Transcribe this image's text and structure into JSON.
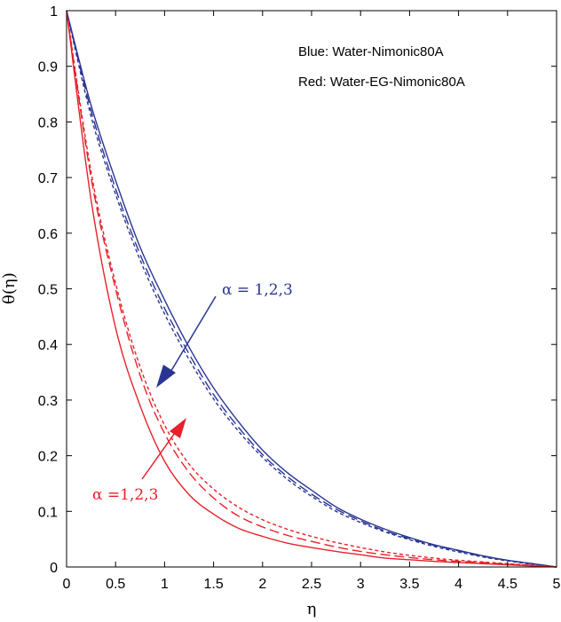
{
  "chart_data": {
    "type": "line",
    "title": "",
    "xlabel": "η",
    "ylabel": "θ(η)",
    "xlim": [
      0,
      5
    ],
    "ylim": [
      0,
      1
    ],
    "xticks": [
      0,
      0.5,
      1,
      1.5,
      2,
      2.5,
      3,
      3.5,
      4,
      4.5,
      5
    ],
    "yticks": [
      0,
      0.1,
      0.2,
      0.3,
      0.4,
      0.5,
      0.6,
      0.7,
      0.8,
      0.9,
      1
    ],
    "xtick_labels": [
      "0",
      "0.5",
      "1",
      "1.5",
      "2",
      "2.5",
      "3",
      "3.5",
      "4",
      "4.5",
      "5"
    ],
    "ytick_labels": [
      "0",
      "0.1",
      "0.2",
      "0.3",
      "0.4",
      "0.5",
      "0.6",
      "0.7",
      "0.8",
      "0.9",
      "1"
    ],
    "grid": false,
    "notes": [
      "Blue: Water-Nimonic80A",
      "Red: Water-EG-Nimonic80A"
    ],
    "annotations": [
      {
        "text": "α = 1,2,3",
        "color": "#2a3593"
      },
      {
        "text": "α =1,2,3",
        "color": "#e8202a"
      }
    ],
    "x": [
      0,
      0.25,
      0.5,
      0.75,
      1,
      1.25,
      1.5,
      1.75,
      2,
      2.25,
      2.5,
      2.75,
      3,
      3.25,
      3.5,
      3.75,
      4,
      4.25,
      4.5,
      4.75,
      5
    ],
    "series": [
      {
        "color": "#2a3593",
        "dash": "solid",
        "values": [
          1,
          0.83,
          0.695,
          0.575,
          0.48,
          0.395,
          0.322,
          0.262,
          0.21,
          0.17,
          0.138,
          0.108,
          0.086,
          0.068,
          0.053,
          0.04,
          0.03,
          0.02,
          0.012,
          0.006,
          0
        ]
      },
      {
        "color": "#2a3593",
        "dash": "dashed",
        "values": [
          1,
          0.82,
          0.68,
          0.562,
          0.465,
          0.383,
          0.31,
          0.252,
          0.202,
          0.163,
          0.131,
          0.104,
          0.083,
          0.065,
          0.051,
          0.039,
          0.029,
          0.019,
          0.012,
          0.006,
          0
        ]
      },
      {
        "color": "#2a3593",
        "dash": "dotted",
        "values": [
          1,
          0.81,
          0.67,
          0.552,
          0.455,
          0.373,
          0.302,
          0.245,
          0.197,
          0.158,
          0.127,
          0.1,
          0.08,
          0.063,
          0.049,
          0.037,
          0.027,
          0.018,
          0.011,
          0.005,
          0
        ]
      },
      {
        "color": "#e8202a",
        "dash": "solid",
        "values": [
          1,
          0.66,
          0.43,
          0.29,
          0.19,
          0.13,
          0.095,
          0.07,
          0.055,
          0.043,
          0.035,
          0.028,
          0.022,
          0.016,
          0.013,
          0.01,
          0.008,
          0.006,
          0.004,
          0.002,
          0
        ]
      },
      {
        "color": "#e8202a",
        "dash": "dashed",
        "values": [
          1,
          0.7,
          0.5,
          0.345,
          0.24,
          0.17,
          0.124,
          0.092,
          0.072,
          0.057,
          0.046,
          0.036,
          0.028,
          0.022,
          0.017,
          0.013,
          0.01,
          0.008,
          0.005,
          0.003,
          0
        ]
      },
      {
        "color": "#e8202a",
        "dash": "dotted",
        "values": [
          1,
          0.71,
          0.51,
          0.36,
          0.255,
          0.185,
          0.14,
          0.108,
          0.085,
          0.068,
          0.055,
          0.044,
          0.035,
          0.027,
          0.021,
          0.016,
          0.012,
          0.009,
          0.006,
          0.003,
          0
        ]
      }
    ]
  }
}
